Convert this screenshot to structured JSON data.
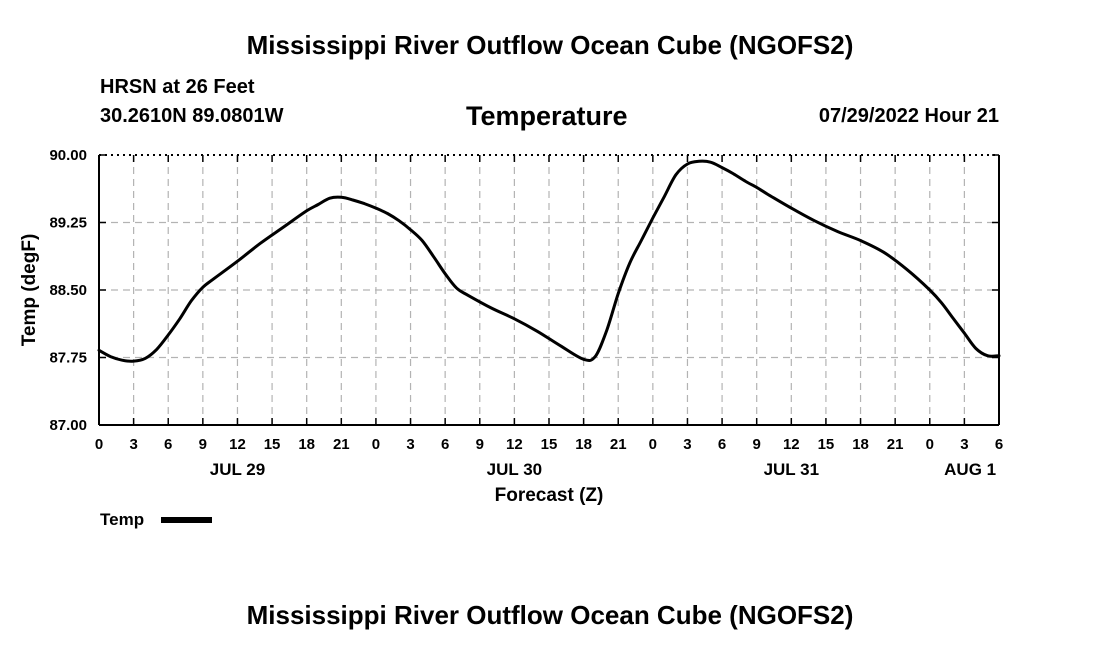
{
  "header": {
    "title": "Mississippi River Outflow Ocean Cube (NGOFS2)",
    "station": "HRSN at 26 Feet",
    "coords": "30.2610N  89.0801W",
    "variable": "Temperature",
    "datetime": "07/29/2022 Hour 21"
  },
  "footer": {
    "title": "Mississippi River Outflow Ocean Cube (NGOFS2)"
  },
  "legend": {
    "label": "Temp"
  },
  "chart_data": {
    "type": "line",
    "title": "Temperature",
    "xlabel": "Forecast (Z)",
    "ylabel": "Temp (degF)",
    "xlim": [
      0,
      78
    ],
    "ylim": [
      87.0,
      90.0
    ],
    "grid": true,
    "x_ticks": [
      0,
      3,
      6,
      9,
      12,
      15,
      18,
      21,
      24,
      27,
      30,
      33,
      36,
      39,
      42,
      45,
      48,
      51,
      54,
      57,
      60,
      63,
      66,
      69,
      72,
      75,
      78
    ],
    "x_tick_labels": [
      "0",
      "3",
      "6",
      "9",
      "12",
      "15",
      "18",
      "21",
      "0",
      "3",
      "6",
      "9",
      "12",
      "15",
      "18",
      "21",
      "0",
      "3",
      "6",
      "9",
      "12",
      "15",
      "18",
      "21",
      "0",
      "3",
      "6"
    ],
    "day_labels": [
      {
        "x": 12,
        "label": "JUL 29"
      },
      {
        "x": 36,
        "label": "JUL 30"
      },
      {
        "x": 60,
        "label": "JUL 31"
      },
      {
        "x": 75.5,
        "label": "AUG 1"
      }
    ],
    "y_ticks": [
      87.0,
      87.75,
      88.5,
      89.25,
      90.0
    ],
    "y_tick_labels": [
      "87.00",
      "87.75",
      "88.50",
      "89.25",
      "90.00"
    ],
    "series": [
      {
        "name": "Temp",
        "x": [
          0,
          1,
          2,
          3,
          4,
          5,
          6,
          7,
          8,
          9,
          10,
          12,
          14,
          16,
          18,
          19,
          20,
          21,
          22,
          23,
          24,
          25,
          26,
          27,
          28,
          29,
          30,
          31,
          32,
          34,
          36,
          38,
          40,
          42,
          43,
          44,
          45,
          46,
          47,
          48,
          49,
          50,
          51,
          52,
          53,
          54,
          55,
          56,
          57,
          58,
          60,
          62,
          64,
          66,
          68,
          70,
          72,
          73,
          74,
          75,
          76,
          77,
          78
        ],
        "values": [
          87.83,
          87.76,
          87.72,
          87.71,
          87.74,
          87.84,
          88.0,
          88.18,
          88.38,
          88.53,
          88.63,
          88.82,
          89.02,
          89.2,
          89.38,
          89.45,
          89.52,
          89.53,
          89.5,
          89.46,
          89.41,
          89.35,
          89.27,
          89.17,
          89.05,
          88.87,
          88.68,
          88.52,
          88.44,
          88.3,
          88.18,
          88.04,
          87.88,
          87.73,
          87.76,
          88.05,
          88.46,
          88.8,
          89.05,
          89.3,
          89.54,
          89.78,
          89.9,
          89.93,
          89.92,
          89.86,
          89.79,
          89.71,
          89.64,
          89.56,
          89.41,
          89.27,
          89.15,
          89.05,
          88.92,
          88.73,
          88.5,
          88.36,
          88.19,
          88.02,
          87.85,
          87.77,
          87.77
        ]
      }
    ]
  }
}
